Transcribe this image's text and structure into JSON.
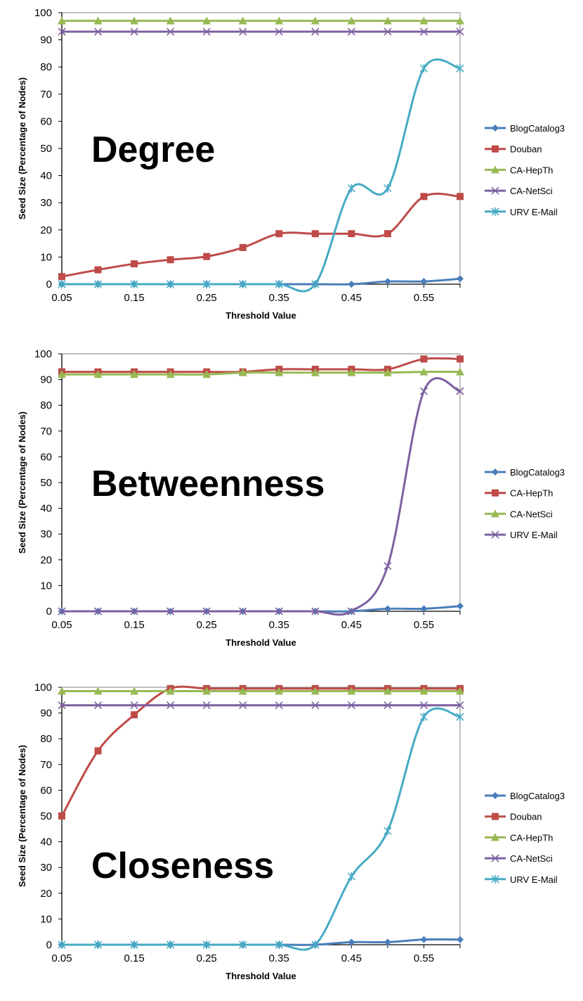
{
  "chart_data": [
    {
      "type": "line",
      "title": "Degree",
      "xlabel": "Threshold Value",
      "ylabel": "Seed Size (Percentage of Nodes)",
      "x": [
        0.05,
        0.1,
        0.15,
        0.2,
        0.25,
        0.3,
        0.35,
        0.4,
        0.45,
        0.5,
        0.55,
        0.6
      ],
      "x_tick_labels": [
        "0.05",
        "0.15",
        "0.25",
        "0.35",
        "0.45",
        "0.55"
      ],
      "y_tick_labels": [
        "0",
        "10",
        "20",
        "30",
        "40",
        "50",
        "60",
        "70",
        "80",
        "90",
        "100"
      ],
      "xlim": [
        0.05,
        0.6
      ],
      "ylim": [
        0,
        100
      ],
      "grid": false,
      "legend_position": "right",
      "series": [
        {
          "name": "BlogCatalog3",
          "color": "#4a7ebb",
          "marker": "diamond",
          "values": [
            0,
            0,
            0,
            0,
            0,
            0,
            0,
            0,
            0,
            1,
            1,
            2
          ]
        },
        {
          "name": "Douban",
          "color": "#be4b48",
          "marker": "square",
          "values": [
            2.8,
            5.3,
            7.5,
            9,
            10.2,
            13.5,
            18.6,
            18.6,
            18.6,
            18.6,
            32.3,
            32.3
          ]
        },
        {
          "name": "CA-HepTh",
          "color": "#98b954",
          "marker": "triangle",
          "values": [
            97,
            97,
            97,
            97,
            97,
            97,
            97,
            97,
            97,
            97,
            97,
            97
          ]
        },
        {
          "name": "CA-NetSci",
          "color": "#7d60a0",
          "marker": "x",
          "values": [
            93,
            93,
            93,
            93,
            93,
            93,
            93,
            93,
            93,
            93,
            93,
            93
          ]
        },
        {
          "name": "URV E-Mail",
          "color": "#46aac5",
          "marker": "asterisk",
          "values": [
            0,
            0,
            0,
            0,
            0,
            0,
            0,
            0,
            35.3,
            35.3,
            79.5,
            79.5
          ]
        }
      ]
    },
    {
      "type": "line",
      "title": "Betweenness",
      "xlabel": "Threshold Value",
      "ylabel": "Seed Size (Percentage of Nodes)",
      "x": [
        0.05,
        0.1,
        0.15,
        0.2,
        0.25,
        0.3,
        0.35,
        0.4,
        0.45,
        0.5,
        0.55,
        0.6
      ],
      "x_tick_labels": [
        "0.05",
        "0.15",
        "0.25",
        "0.35",
        "0.45",
        "0.55"
      ],
      "y_tick_labels": [
        "0",
        "10",
        "20",
        "30",
        "40",
        "50",
        "60",
        "70",
        "80",
        "90",
        "100"
      ],
      "xlim": [
        0.05,
        0.6
      ],
      "ylim": [
        0,
        100
      ],
      "grid": false,
      "legend_position": "right",
      "series": [
        {
          "name": "BlogCatalog3",
          "color": "#4a7ebb",
          "marker": "diamond",
          "values": [
            0,
            0,
            0,
            0,
            0,
            0,
            0,
            0,
            0,
            1,
            1,
            2
          ]
        },
        {
          "name": "CA-HepTh",
          "color": "#be4b48",
          "marker": "square",
          "values": [
            93,
            93,
            93,
            93,
            93,
            93,
            94,
            94,
            94,
            94,
            98,
            98
          ]
        },
        {
          "name": "CA-NetSci",
          "color": "#98b954",
          "marker": "triangle",
          "values": [
            92,
            92,
            92,
            92,
            92,
            92.7,
            92.7,
            92.7,
            92.7,
            92.7,
            93,
            93
          ]
        },
        {
          "name": "URV E-Mail",
          "color": "#7d60a0",
          "marker": "x",
          "values": [
            0,
            0,
            0,
            0,
            0,
            0,
            0,
            0,
            0,
            17.6,
            85.5,
            85.5
          ]
        }
      ]
    },
    {
      "type": "line",
      "title": "Closeness",
      "xlabel": "Threshold Value",
      "ylabel": "Seed Size (Percentage of Nodes)",
      "x": [
        0.05,
        0.1,
        0.15,
        0.2,
        0.25,
        0.3,
        0.35,
        0.4,
        0.45,
        0.5,
        0.55,
        0.6
      ],
      "x_tick_labels": [
        "0.05",
        "0.15",
        "0.25",
        "0.35",
        "0.45",
        "0.55"
      ],
      "y_tick_labels": [
        "0",
        "10",
        "20",
        "30",
        "40",
        "50",
        "60",
        "70",
        "80",
        "90",
        "100"
      ],
      "xlim": [
        0.05,
        0.6
      ],
      "ylim": [
        0,
        100
      ],
      "grid": false,
      "legend_position": "right",
      "series": [
        {
          "name": "BlogCatalog3",
          "color": "#4a7ebb",
          "marker": "diamond",
          "values": [
            0,
            0,
            0,
            0,
            0,
            0,
            0,
            0,
            1,
            1,
            2,
            2
          ]
        },
        {
          "name": "Douban",
          "color": "#be4b48",
          "marker": "square",
          "values": [
            50,
            75.3,
            89.3,
            99.5,
            99.5,
            99.5,
            99.5,
            99.5,
            99.5,
            99.5,
            99.5,
            99.5
          ]
        },
        {
          "name": "CA-HepTh",
          "color": "#98b954",
          "marker": "triangle",
          "values": [
            98.5,
            98.5,
            98.5,
            98.5,
            98.5,
            98.5,
            98.5,
            98.5,
            98.5,
            98.5,
            98.5,
            98.5
          ]
        },
        {
          "name": "CA-NetSci",
          "color": "#7d60a0",
          "marker": "x",
          "values": [
            93,
            93,
            93,
            93,
            93,
            93,
            93,
            93,
            93,
            93,
            93,
            93
          ]
        },
        {
          "name": "URV E-Mail",
          "color": "#46aac5",
          "marker": "asterisk",
          "values": [
            0,
            0,
            0,
            0,
            0,
            0,
            0,
            0,
            26.5,
            44.2,
            88.5,
            88.5
          ]
        }
      ]
    }
  ]
}
